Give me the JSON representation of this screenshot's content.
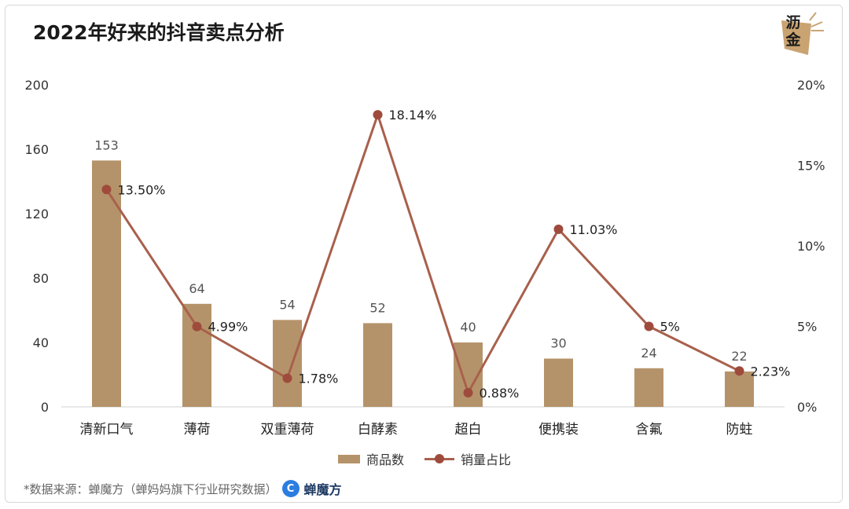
{
  "header": {
    "title": "2022年好来的抖音卖点分析",
    "logo_text": "沥金",
    "logo_icon": "liji-logo-icon"
  },
  "chart_data": {
    "type": "bar",
    "title": "2022年好来的抖音卖点分析",
    "categories": [
      "清新口气",
      "薄荷",
      "双重薄荷",
      "白酵素",
      "超白",
      "便携装",
      "含氟",
      "防蛀"
    ],
    "series": [
      {
        "name": "商品数",
        "type": "bar",
        "axis": "left",
        "values": [
          153,
          64,
          54,
          52,
          40,
          30,
          24,
          22
        ],
        "labels": [
          "153",
          "64",
          "54",
          "52",
          "40",
          "30",
          "24",
          "22"
        ],
        "color": "#b5936a"
      },
      {
        "name": "销量占比",
        "type": "line",
        "axis": "right",
        "values": [
          13.5,
          4.99,
          1.78,
          18.14,
          0.88,
          11.03,
          5,
          2.23
        ],
        "labels": [
          "13.50%",
          "4.99%",
          "1.78%",
          "18.14%",
          "0.88%",
          "11.03%",
          "5%",
          "2.23%"
        ],
        "color": "#a8604c",
        "marker_color": "#9e4b3c"
      }
    ],
    "y_left": {
      "min": 0,
      "max": 200,
      "ticks": [
        "0",
        "40",
        "80",
        "120",
        "160",
        "200"
      ],
      "tick_values": [
        0,
        40,
        80,
        120,
        160,
        200
      ]
    },
    "y_right": {
      "min": 0,
      "max": 20,
      "ticks": [
        "0%",
        "5%",
        "10%",
        "15%",
        "20%"
      ],
      "tick_values": [
        0,
        5,
        10,
        15,
        20
      ]
    },
    "grid": false,
    "legend_position": "bottom"
  },
  "legend": {
    "bar_label": "商品数",
    "line_label": "销量占比"
  },
  "footer": {
    "source": "*数据来源：蝉魔方（蝉妈妈旗下行业研究数据）",
    "brand_icon_glyph": "C",
    "brand_name": "蝉魔方"
  }
}
